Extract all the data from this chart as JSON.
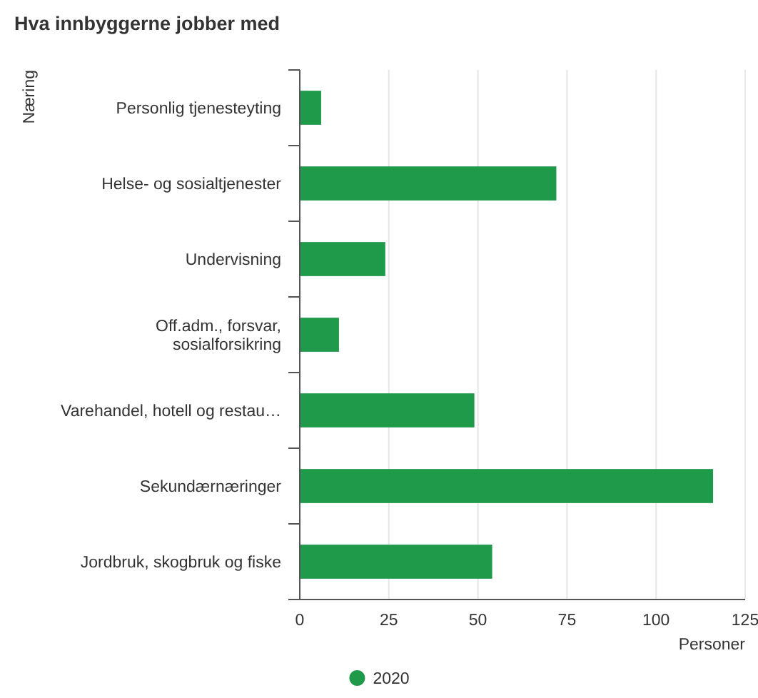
{
  "chart_data": {
    "type": "bar",
    "orientation": "horizontal",
    "title": "Hva innbyggerne jobber med",
    "xlabel": "Personer",
    "ylabel": "Næring",
    "categories": [
      "Personlig tjenesteyting",
      "Helse- og sosialtjenester",
      "Undervisning",
      "Off.adm., forsvar, sosialforsikring",
      "Varehandel, hotell og restau…",
      "Sekundærnæringer",
      "Jordbruk, skogbruk og fiske"
    ],
    "series": [
      {
        "name": "2020",
        "color": "#1f9a4a",
        "values": [
          6,
          72,
          24,
          11,
          49,
          116,
          54
        ]
      }
    ],
    "xlim": [
      0,
      125
    ],
    "xticks": [
      0,
      25,
      50,
      75,
      100,
      125
    ],
    "grid": "x",
    "legend": "bottom"
  }
}
